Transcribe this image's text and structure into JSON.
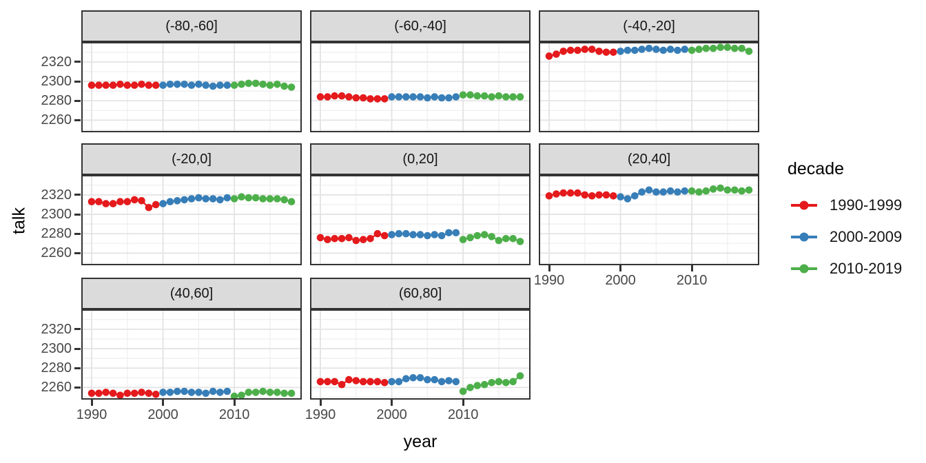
{
  "chart_data": {
    "type": "scatter",
    "title": "",
    "xlabel": "year",
    "ylabel": "talk",
    "grid": true,
    "legend_position": "right",
    "legend_title": "decade",
    "legend_entries": [
      {
        "label": "1990-1999",
        "color": "#E41A1C"
      },
      {
        "label": "2000-2009",
        "color": "#377EB8"
      },
      {
        "label": "2010-2019",
        "color": "#4DAF4A"
      }
    ],
    "x_ticks": [
      1990,
      2000,
      2010
    ],
    "y_ticks": [
      2320,
      2300,
      2280,
      2260
    ],
    "x_minor": [
      1995,
      2005,
      2015
    ],
    "y_minor": [
      2330,
      2310,
      2290,
      2270,
      2250
    ],
    "xlim": [
      1988.55,
      2019.45
    ],
    "ylim": [
      2247.5,
      2340.5
    ],
    "decade_breaks": [
      2000,
      2010
    ],
    "years": [
      1990,
      1991,
      1992,
      1993,
      1994,
      1995,
      1996,
      1997,
      1998,
      1999,
      2000,
      2001,
      2002,
      2003,
      2004,
      2005,
      2006,
      2007,
      2008,
      2009,
      2010,
      2011,
      2012,
      2013,
      2014,
      2015,
      2016,
      2017,
      2018
    ],
    "facets": [
      {
        "label": "(-80,-60]",
        "values": [
          2296,
          2296,
          2296,
          2296,
          2297,
          2296,
          2296,
          2297,
          2296,
          2296,
          2296,
          2297,
          2297,
          2297,
          2296,
          2297,
          2296,
          2295,
          2296,
          2296,
          2296,
          2297,
          2298,
          2298,
          2297,
          2296,
          2297,
          2295,
          2294
        ]
      },
      {
        "label": "(-60,-40]",
        "values": [
          2284,
          2284,
          2285,
          2285,
          2284,
          2283,
          2283,
          2282,
          2282,
          2282,
          2284,
          2284,
          2284,
          2284,
          2284,
          2283,
          2284,
          2283,
          2283,
          2284,
          2286,
          2286,
          2285,
          2285,
          2284,
          2285,
          2284,
          2284,
          2284
        ]
      },
      {
        "label": "(-40,-20]",
        "values": [
          2326,
          2328,
          2331,
          2332,
          2332,
          2333,
          2333,
          2331,
          2330,
          2330,
          2331,
          2332,
          2332,
          2333,
          2334,
          2333,
          2332,
          2333,
          2332,
          2333,
          2332,
          2333,
          2334,
          2334,
          2335,
          2335,
          2334,
          2334,
          2331
        ]
      },
      {
        "label": "(-20,0]",
        "values": [
          2313,
          2313,
          2311,
          2311,
          2313,
          2313,
          2315,
          2314,
          2307,
          2310,
          2311,
          2313,
          2314,
          2315,
          2316,
          2317,
          2316,
          2316,
          2315,
          2317,
          2316,
          2318,
          2317,
          2317,
          2316,
          2316,
          2316,
          2315,
          2313
        ]
      },
      {
        "label": "(0,20]",
        "values": [
          2276,
          2274,
          2275,
          2275,
          2276,
          2273,
          2274,
          2275,
          2280,
          2278,
          2279,
          2280,
          2280,
          2279,
          2279,
          2278,
          2279,
          2278,
          2281,
          2281,
          2274,
          2276,
          2278,
          2279,
          2277,
          2273,
          2275,
          2275,
          2272
        ]
      },
      {
        "label": "(20,40]",
        "values": [
          2319,
          2321,
          2322,
          2322,
          2322,
          2320,
          2319,
          2320,
          2320,
          2319,
          2318,
          2316,
          2319,
          2323,
          2325,
          2323,
          2323,
          2324,
          2323,
          2324,
          2324,
          2323,
          2324,
          2326,
          2327,
          2325,
          2325,
          2324,
          2325
        ]
      },
      {
        "label": "(40,60]",
        "values": [
          2254,
          2254,
          2255,
          2254,
          2252,
          2254,
          2254,
          2255,
          2254,
          2253,
          2255,
          2255,
          2256,
          2256,
          2255,
          2255,
          2254,
          2256,
          2255,
          2256,
          2251,
          2252,
          2255,
          2255,
          2256,
          2255,
          2255,
          2254,
          2254
        ]
      },
      {
        "label": "(60,80]",
        "values": [
          2266,
          2266,
          2266,
          2263,
          2268,
          2267,
          2266,
          2266,
          2266,
          2265,
          2266,
          2266,
          2269,
          2270,
          2270,
          2268,
          2268,
          2266,
          2267,
          2266,
          2256,
          2260,
          2262,
          2263,
          2265,
          2266,
          2265,
          2266,
          2272
        ]
      }
    ]
  }
}
